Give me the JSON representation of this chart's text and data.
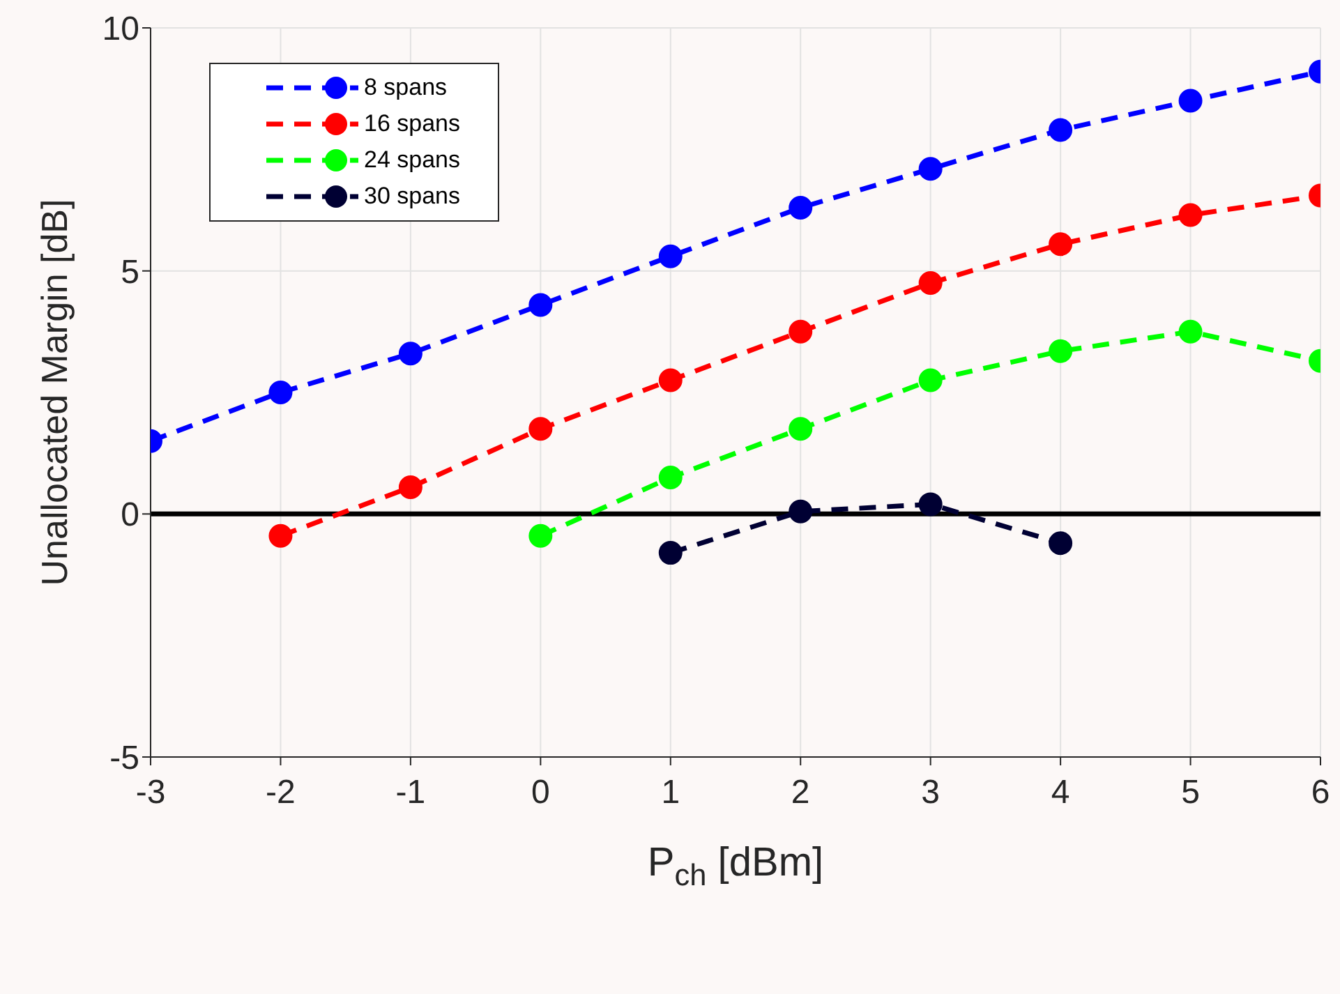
{
  "chart_data": {
    "type": "line",
    "xlabel": "P$_{ch}$ [dBm]",
    "ylabel": "Unallocated Margin [dB]",
    "x": [
      -3,
      -2,
      -1,
      0,
      1,
      2,
      3,
      4,
      5,
      6
    ],
    "series": [
      {
        "name": "8 spans",
        "color": "#0000ff",
        "values": [
          1.5,
          2.5,
          3.3,
          4.3,
          5.3,
          6.3,
          7.1,
          7.9,
          8.5,
          9.1
        ]
      },
      {
        "name": "16 spans",
        "color": "#ff0000",
        "values": [
          null,
          -0.45,
          0.55,
          1.75,
          2.75,
          3.75,
          4.75,
          5.55,
          6.15,
          6.55
        ]
      },
      {
        "name": "24 spans",
        "color": "#00ff00",
        "values": [
          null,
          null,
          null,
          -0.45,
          0.75,
          1.75,
          2.75,
          3.35,
          3.75,
          3.15
        ]
      },
      {
        "name": "30 spans",
        "color": "#000033",
        "values": [
          null,
          null,
          null,
          null,
          -0.8,
          0.05,
          0.2,
          -0.6,
          null,
          null
        ]
      }
    ],
    "xlim": [
      -3,
      6
    ],
    "xticks": [
      -3,
      -2,
      -1,
      0,
      1,
      2,
      3,
      4,
      5,
      6
    ],
    "ylim": [
      -5,
      10
    ],
    "yticks": [
      -5,
      0,
      5,
      10
    ],
    "ref_lines": [
      {
        "axis": "y",
        "value": 0,
        "color": "#000000"
      }
    ],
    "grid": true,
    "legend": "top left",
    "marker": "circle",
    "line_style": "dashed"
  }
}
